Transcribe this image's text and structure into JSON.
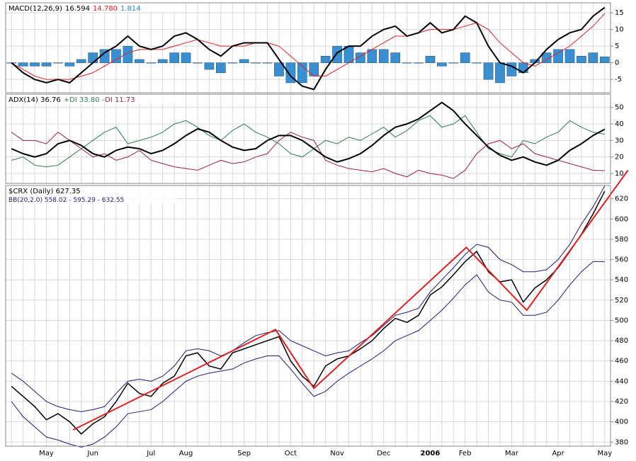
{
  "chart_data": [
    {
      "type": "line",
      "header": [
        {
          "text": "MACD(12,26,9)",
          "color": "#000000"
        },
        {
          "text": "16.594",
          "color": "#000000"
        },
        {
          "text": "14.780",
          "color": "#e02020"
        },
        {
          "text": "1.814",
          "color": "#2f86c8"
        }
      ],
      "ylim": [
        -9,
        18
      ],
      "yticks": [
        -5,
        0,
        5,
        10,
        15
      ],
      "grid": true,
      "series": [
        {
          "type": "bar",
          "color": "#3a8fd0",
          "values": [
            0,
            -1,
            -1,
            -1,
            0,
            -1,
            1,
            3,
            4,
            4,
            5,
            1,
            0,
            1,
            3,
            3,
            0,
            -2,
            -3,
            0,
            1,
            0,
            0,
            -4,
            -6,
            -6,
            -4,
            2,
            5,
            5,
            3,
            4,
            4,
            3,
            0,
            0,
            2,
            -1,
            0,
            3,
            0,
            -5,
            -6,
            -4,
            -3,
            1,
            3,
            4,
            4,
            2,
            3,
            1.814
          ]
        },
        {
          "type": "line",
          "color": "#e02020",
          "values": [
            0,
            -2,
            -4,
            -5,
            -5,
            -5,
            -4,
            -3,
            -1,
            1,
            3,
            4,
            4,
            4,
            5,
            6,
            7,
            6,
            5,
            5,
            5,
            6,
            6,
            5,
            2,
            -1,
            -4,
            -4,
            -2,
            0,
            2,
            4,
            6,
            8,
            8,
            9,
            10,
            10,
            10,
            11,
            12,
            10,
            6,
            3,
            0,
            -1,
            1,
            3,
            5,
            8,
            11,
            14.78
          ]
        },
        {
          "type": "line",
          "color": "#000000",
          "width": 2,
          "values": [
            0,
            -3,
            -5,
            -6,
            -5,
            -6,
            -3,
            0,
            3,
            5,
            8,
            5,
            4,
            5,
            8,
            9,
            7,
            4,
            2,
            5,
            6,
            6,
            6,
            1,
            -4,
            -7,
            -8,
            -2,
            3,
            5,
            5,
            8,
            10,
            11,
            8,
            9,
            12,
            9,
            10,
            14,
            12,
            5,
            0,
            -1,
            -3,
            0,
            4,
            7,
            9,
            10,
            14,
            16.594
          ]
        }
      ]
    },
    {
      "type": "line",
      "header": [
        {
          "text": "ADX(14) 36.76",
          "color": "#000000"
        },
        {
          "text": "+DI 33.80",
          "color": "#2e7d4f"
        },
        {
          "text": "-DI 11.73",
          "color": "#a0204a"
        }
      ],
      "ylim": [
        4,
        58
      ],
      "yticks": [
        10,
        20,
        30,
        40,
        50
      ],
      "grid": true,
      "series": [
        {
          "type": "line",
          "color": "#2e7d4f",
          "values": [
            18,
            20,
            15,
            14,
            15,
            20,
            25,
            30,
            35,
            38,
            28,
            30,
            32,
            35,
            40,
            42,
            38,
            33,
            30,
            36,
            40,
            35,
            32,
            28,
            22,
            20,
            25,
            30,
            28,
            32,
            30,
            34,
            38,
            32,
            36,
            42,
            45,
            38,
            40,
            45,
            35,
            25,
            22,
            20,
            30,
            28,
            32,
            35,
            42,
            38,
            35,
            33.8
          ]
        },
        {
          "type": "line",
          "color": "#a0204a",
          "values": [
            35,
            30,
            30,
            28,
            35,
            30,
            25,
            20,
            22,
            18,
            20,
            24,
            18,
            16,
            14,
            13,
            12,
            15,
            18,
            16,
            17,
            20,
            22,
            30,
            35,
            32,
            30,
            18,
            15,
            13,
            12,
            11,
            13,
            10,
            8,
            12,
            10,
            9,
            7,
            12,
            22,
            28,
            30,
            25,
            28,
            22,
            20,
            18,
            16,
            14,
            12,
            11.73
          ]
        },
        {
          "type": "line",
          "color": "#000000",
          "width": 2,
          "values": [
            25,
            22,
            20,
            22,
            28,
            30,
            27,
            22,
            20,
            24,
            26,
            25,
            22,
            24,
            28,
            33,
            37,
            35,
            30,
            26,
            24,
            25,
            30,
            33,
            33,
            30,
            25,
            20,
            17,
            19,
            22,
            27,
            33,
            38,
            40,
            43,
            48,
            53,
            48,
            40,
            33,
            26,
            21,
            18,
            20,
            17,
            15,
            18,
            24,
            28,
            33,
            36.76
          ]
        }
      ]
    },
    {
      "type": "line",
      "header": [
        {
          "text": "$CRX (Daily) 627.35",
          "color": "#000000"
        }
      ],
      "subheader": [
        {
          "text": "BB(20,2.0) 558.02 - 595.29 - 632.55",
          "color": "#1c1c80"
        }
      ],
      "ylim": [
        376,
        633
      ],
      "yticks": [
        380,
        400,
        420,
        440,
        460,
        480,
        500,
        520,
        540,
        560,
        580,
        600,
        620
      ],
      "grid": true,
      "categories": [
        null,
        null,
        null,
        "May",
        null,
        null,
        null,
        "Jun",
        null,
        null,
        null,
        null,
        "Jul",
        null,
        null,
        "Aug",
        null,
        null,
        null,
        null,
        "Sep",
        null,
        null,
        null,
        "Oct",
        null,
        null,
        null,
        "Nov",
        null,
        null,
        null,
        "Dec",
        null,
        null,
        null,
        "2006",
        null,
        null,
        "Feb",
        null,
        null,
        null,
        "Mar",
        null,
        null,
        null,
        "Apr",
        null,
        null,
        null,
        "May"
      ],
      "series": [
        {
          "type": "line",
          "color": "#1c1c80",
          "values": [
            448,
            440,
            430,
            420,
            415,
            412,
            410,
            412,
            415,
            428,
            440,
            442,
            440,
            445,
            455,
            470,
            472,
            470,
            465,
            470,
            478,
            485,
            488,
            490,
            480,
            475,
            470,
            465,
            468,
            470,
            478,
            485,
            495,
            505,
            508,
            512,
            528,
            540,
            552,
            565,
            575,
            572,
            560,
            555,
            548,
            548,
            550,
            560,
            575,
            595,
            612,
            632.55
          ]
        },
        {
          "type": "line",
          "color": "#1c1c80",
          "values": [
            420,
            405,
            395,
            385,
            382,
            378,
            375,
            378,
            385,
            395,
            408,
            410,
            412,
            420,
            430,
            440,
            445,
            448,
            450,
            452,
            458,
            462,
            465,
            465,
            452,
            438,
            425,
            430,
            440,
            448,
            455,
            462,
            470,
            480,
            485,
            490,
            500,
            510,
            522,
            535,
            545,
            528,
            520,
            518,
            505,
            505,
            508,
            520,
            535,
            548,
            558,
            558.02
          ]
        },
        {
          "type": "line",
          "color": "#000000",
          "width": 1.5,
          "values": [
            435,
            425,
            415,
            402,
            408,
            400,
            388,
            398,
            405,
            420,
            438,
            428,
            425,
            438,
            445,
            465,
            468,
            455,
            452,
            468,
            472,
            476,
            480,
            484,
            460,
            445,
            435,
            455,
            462,
            465,
            472,
            480,
            492,
            502,
            498,
            505,
            525,
            533,
            545,
            558,
            568,
            548,
            538,
            540,
            518,
            532,
            540,
            552,
            568,
            585,
            605,
            627.35
          ]
        }
      ],
      "trend_line": {
        "color": "#e02020",
        "x": [
          5.3,
          22.7,
          26,
          39.1,
          44.3,
          53
        ],
        "values": [
          392,
          491,
          433,
          572,
          510,
          648
        ]
      }
    }
  ]
}
